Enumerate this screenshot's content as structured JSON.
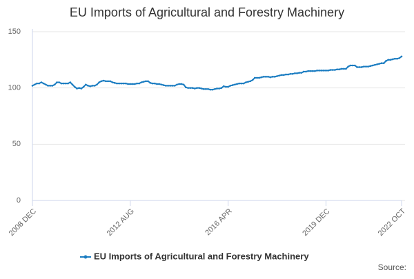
{
  "chart_data": {
    "type": "line",
    "title": "EU Imports of Agricultural and Forestry Machinery",
    "source": "Source:",
    "categories": [
      "2008 DEC",
      null,
      null,
      null,
      null,
      null,
      null,
      null,
      null,
      null,
      null,
      null,
      null,
      null,
      null,
      null,
      null,
      null,
      null,
      null,
      null,
      null,
      null,
      null,
      null,
      null,
      null,
      null,
      null,
      null,
      null,
      null,
      null,
      null,
      null,
      null,
      null,
      null,
      null,
      null,
      null,
      null,
      null,
      null,
      "2012 AUG",
      null,
      null,
      null,
      null,
      null,
      null,
      null,
      null,
      null,
      null,
      null,
      null,
      null,
      null,
      null,
      null,
      null,
      null,
      null,
      null,
      null,
      null,
      null,
      null,
      null,
      null,
      null,
      null,
      null,
      null,
      null,
      null,
      null,
      null,
      null,
      null,
      null,
      null,
      null,
      null,
      null,
      null,
      null,
      "2016 APR",
      null,
      null,
      null,
      null,
      null,
      null,
      null,
      null,
      null,
      null,
      null,
      null,
      null,
      null,
      null,
      null,
      null,
      null,
      null,
      null,
      null,
      null,
      null,
      null,
      null,
      null,
      null,
      null,
      null,
      null,
      null,
      null,
      null,
      null,
      null,
      null,
      null,
      null,
      null,
      null,
      null,
      null,
      null,
      "2019 DEC",
      null,
      null,
      null,
      null,
      null,
      null,
      null,
      null,
      null,
      null,
      null,
      null,
      null,
      null,
      null,
      null,
      null,
      null,
      null,
      null,
      null,
      null,
      null,
      null,
      null,
      null,
      null,
      null,
      null,
      null,
      null,
      null,
      null,
      "2022 OCT"
    ],
    "series": [
      {
        "name": "EU Imports of Agricultural and Forestry Machinery",
        "color": "#1a7cc1",
        "values": [
          102,
          103,
          104,
          104,
          105,
          104,
          103,
          102,
          102,
          102,
          103,
          105,
          105,
          104,
          104,
          104,
          104,
          105,
          103,
          101,
          99.5,
          100,
          99.5,
          101,
          103,
          102,
          101.5,
          102,
          102,
          103,
          105,
          106,
          106.5,
          106,
          106,
          106,
          105,
          104.5,
          104,
          104,
          104,
          104,
          104,
          103.5,
          103.5,
          103.5,
          103.5,
          104,
          104,
          105,
          105.5,
          106,
          106,
          104.5,
          104,
          104,
          103.5,
          103.5,
          103,
          102.5,
          102,
          102,
          102,
          102,
          102,
          103,
          103.5,
          103.5,
          103,
          100.5,
          100,
          100,
          100,
          99.5,
          100,
          100,
          99.5,
          99,
          99,
          99,
          98.5,
          98.5,
          99,
          99.5,
          99.5,
          100,
          101.5,
          101,
          101,
          102,
          102.5,
          103,
          103.5,
          104,
          104,
          104,
          105,
          105.5,
          106,
          107,
          109,
          109,
          109,
          109.5,
          110,
          110,
          110,
          109.5,
          110,
          110,
          110.5,
          111,
          111.5,
          111.5,
          112,
          112,
          112.5,
          112.5,
          113,
          113,
          113.5,
          113.5,
          114.5,
          114.5,
          115,
          115,
          115,
          115,
          115.5,
          115.5,
          115.5,
          115.5,
          115.5,
          115.5,
          116,
          116,
          116,
          116.5,
          116.5,
          117,
          117,
          117,
          119,
          120,
          120,
          120,
          118.5,
          118.5,
          118.5,
          119,
          119,
          119,
          119.5,
          120,
          120.5,
          121,
          121.5,
          122,
          122,
          124,
          125,
          125,
          125.5,
          126,
          126,
          126.5,
          128
        ]
      }
    ],
    "ylim": [
      0,
      150
    ],
    "yticks": [
      0,
      50,
      100,
      150
    ],
    "grid": true
  }
}
